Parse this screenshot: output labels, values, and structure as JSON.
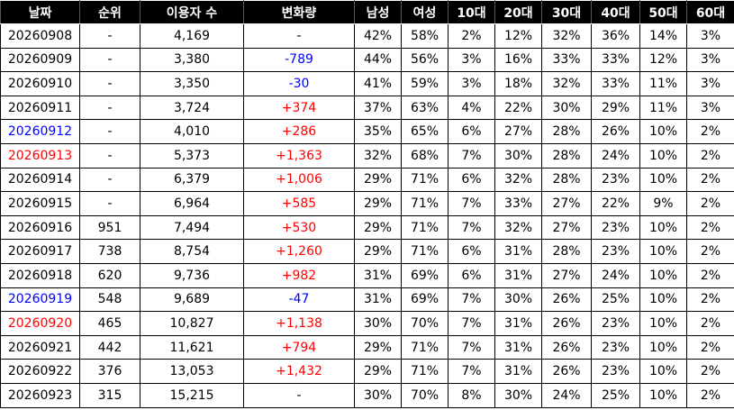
{
  "table": {
    "header": [
      "날짜",
      "순위",
      "이용자 수",
      "변화량",
      "남성",
      "여성",
      "10대",
      "20대",
      "30대",
      "40대",
      "50대",
      "60대"
    ],
    "rows": [
      [
        "20260908",
        "-",
        "4,169",
        "-",
        "42%",
        "58%",
        "2%",
        "12%",
        "32%",
        "36%",
        "14%",
        "3%"
      ],
      [
        "20260909",
        "-",
        "3,380",
        "-789",
        "44%",
        "56%",
        "3%",
        "16%",
        "33%",
        "33%",
        "12%",
        "3%"
      ],
      [
        "20260910",
        "-",
        "3,350",
        "-30",
        "41%",
        "59%",
        "3%",
        "18%",
        "32%",
        "33%",
        "11%",
        "3%"
      ],
      [
        "20260911",
        "-",
        "3,724",
        "+374",
        "37%",
        "63%",
        "4%",
        "22%",
        "30%",
        "29%",
        "11%",
        "3%"
      ],
      [
        "20260912",
        "-",
        "4,010",
        "+286",
        "35%",
        "65%",
        "6%",
        "27%",
        "28%",
        "26%",
        "10%",
        "2%"
      ],
      [
        "20260913",
        "-",
        "5,373",
        "+1,363",
        "32%",
        "68%",
        "7%",
        "30%",
        "28%",
        "24%",
        "10%",
        "2%"
      ],
      [
        "20260914",
        "-",
        "6,379",
        "+1,006",
        "29%",
        "71%",
        "6%",
        "32%",
        "28%",
        "23%",
        "10%",
        "2%"
      ],
      [
        "20260915",
        "-",
        "6,964",
        "+585",
        "29%",
        "71%",
        "7%",
        "33%",
        "27%",
        "22%",
        "9%",
        "2%"
      ],
      [
        "20260916",
        "951",
        "7,494",
        "+530",
        "29%",
        "71%",
        "7%",
        "32%",
        "27%",
        "23%",
        "10%",
        "2%"
      ],
      [
        "20260917",
        "738",
        "8,754",
        "+1,260",
        "29%",
        "71%",
        "6%",
        "31%",
        "28%",
        "23%",
        "10%",
        "2%"
      ],
      [
        "20260918",
        "620",
        "9,736",
        "+982",
        "31%",
        "69%",
        "6%",
        "31%",
        "27%",
        "24%",
        "10%",
        "2%"
      ],
      [
        "20260919",
        "548",
        "9,689",
        "-47",
        "31%",
        "69%",
        "7%",
        "30%",
        "26%",
        "25%",
        "10%",
        "2%"
      ],
      [
        "20260920",
        "465",
        "10,827",
        "+1,138",
        "30%",
        "70%",
        "7%",
        "31%",
        "26%",
        "23%",
        "10%",
        "2%"
      ],
      [
        "20260921",
        "442",
        "11,621",
        "+794",
        "29%",
        "71%",
        "7%",
        "31%",
        "26%",
        "23%",
        "10%",
        "2%"
      ],
      [
        "20260922",
        "376",
        "13,053",
        "+1,432",
        "29%",
        "71%",
        "7%",
        "31%",
        "26%",
        "23%",
        "10%",
        "2%"
      ],
      [
        "20260923",
        "315",
        "15,215",
        "-",
        "30%",
        "70%",
        "8%",
        "30%",
        "24%",
        "25%",
        "10%",
        "2%"
      ]
    ]
  }
}
